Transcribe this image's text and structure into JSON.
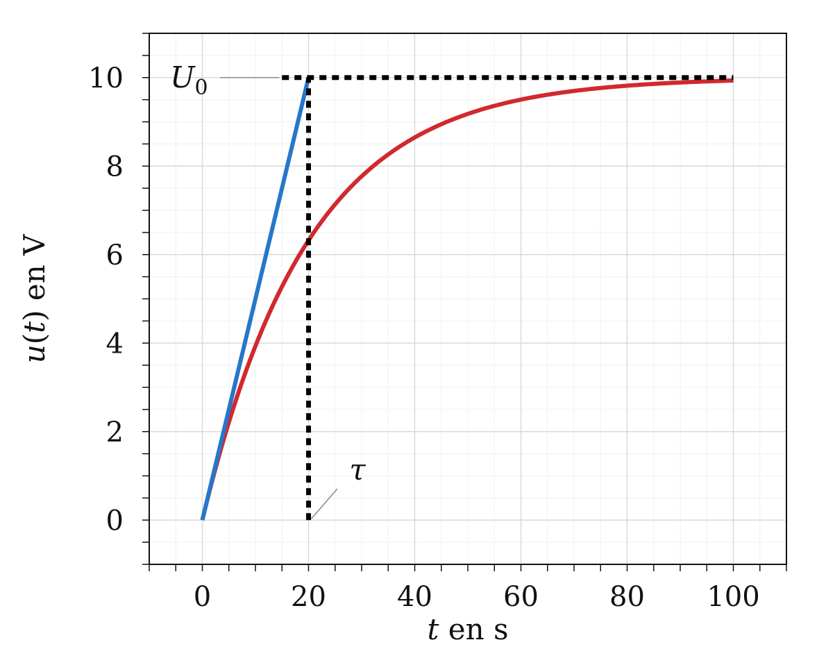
{
  "chart_data": {
    "type": "line",
    "xlabel": {
      "var": "t",
      "rest": " en s"
    },
    "ylabel": {
      "var": "u",
      "arg": "t",
      "rest": " en V"
    },
    "xlim": [
      -10,
      110
    ],
    "ylim": [
      -1,
      11
    ],
    "x_ticks": [
      0,
      20,
      40,
      60,
      80,
      100
    ],
    "y_ticks": [
      0,
      2,
      4,
      6,
      8,
      10
    ],
    "x_minor_step": 5,
    "y_minor_step": 0.5,
    "grid": true,
    "colors": {
      "curve": "#d1292e",
      "tangent": "#2677c9",
      "dashed": "#000000",
      "grid_major": "#d9d9d9",
      "grid_minor": "#f0f0f0"
    },
    "series": [
      {
        "kind": "exponential_charge",
        "U0": 10,
        "tau": 20,
        "x_range": [
          0,
          100
        ],
        "color": "#d1292e"
      },
      {
        "kind": "tangent_at_origin",
        "points": [
          [
            0,
            0
          ],
          [
            20,
            10
          ]
        ],
        "color": "#2677c9"
      },
      {
        "kind": "dashed_horizontal",
        "points": [
          [
            15,
            10
          ],
          [
            100,
            10
          ]
        ],
        "color": "#000000"
      },
      {
        "kind": "dashed_vertical",
        "points": [
          [
            20,
            0
          ],
          [
            20,
            10
          ]
        ],
        "color": "#000000"
      }
    ],
    "annotations": [
      {
        "text": "U",
        "sub": "0",
        "label_at": [
          -2.5,
          10
        ],
        "pointer_to": [
          14.5,
          10
        ]
      },
      {
        "text": "τ",
        "label_at": [
          30,
          1.1
        ],
        "pointer_to": [
          20,
          0
        ]
      }
    ]
  }
}
